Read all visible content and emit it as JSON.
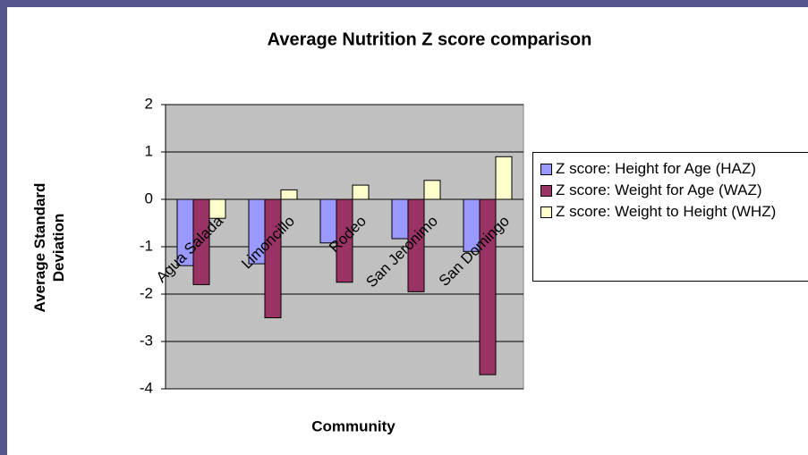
{
  "chart_data": {
    "type": "bar",
    "title": "Average Nutrition Z score comparison",
    "x_label": "Community",
    "y_label": "Average Standard Deviation",
    "categories": [
      "Agua Salada",
      "Limoncillo",
      "Rodeo",
      "San Jeronimo",
      "San Domingo"
    ],
    "series": [
      {
        "name": "Z score: Height for Age (HAZ)",
        "color": "#9999ff",
        "values": [
          -1.4,
          -1.36,
          -0.92,
          -0.83,
          -1.1
        ]
      },
      {
        "name": "Z score: Weight for Age (WAZ)",
        "color": "#993366",
        "values": [
          -1.8,
          -2.5,
          -1.75,
          -1.95,
          -3.7
        ]
      },
      {
        "name": "Z score: Weight to Height (WHZ)",
        "color": "#ffffcc",
        "values": [
          -0.4,
          0.2,
          0.3,
          0.4,
          0.9
        ]
      }
    ],
    "ylim": [
      -4,
      2
    ],
    "yticks": [
      -4,
      -3,
      -2,
      -1,
      0,
      1,
      2
    ],
    "grid": true,
    "legend": "right"
  }
}
